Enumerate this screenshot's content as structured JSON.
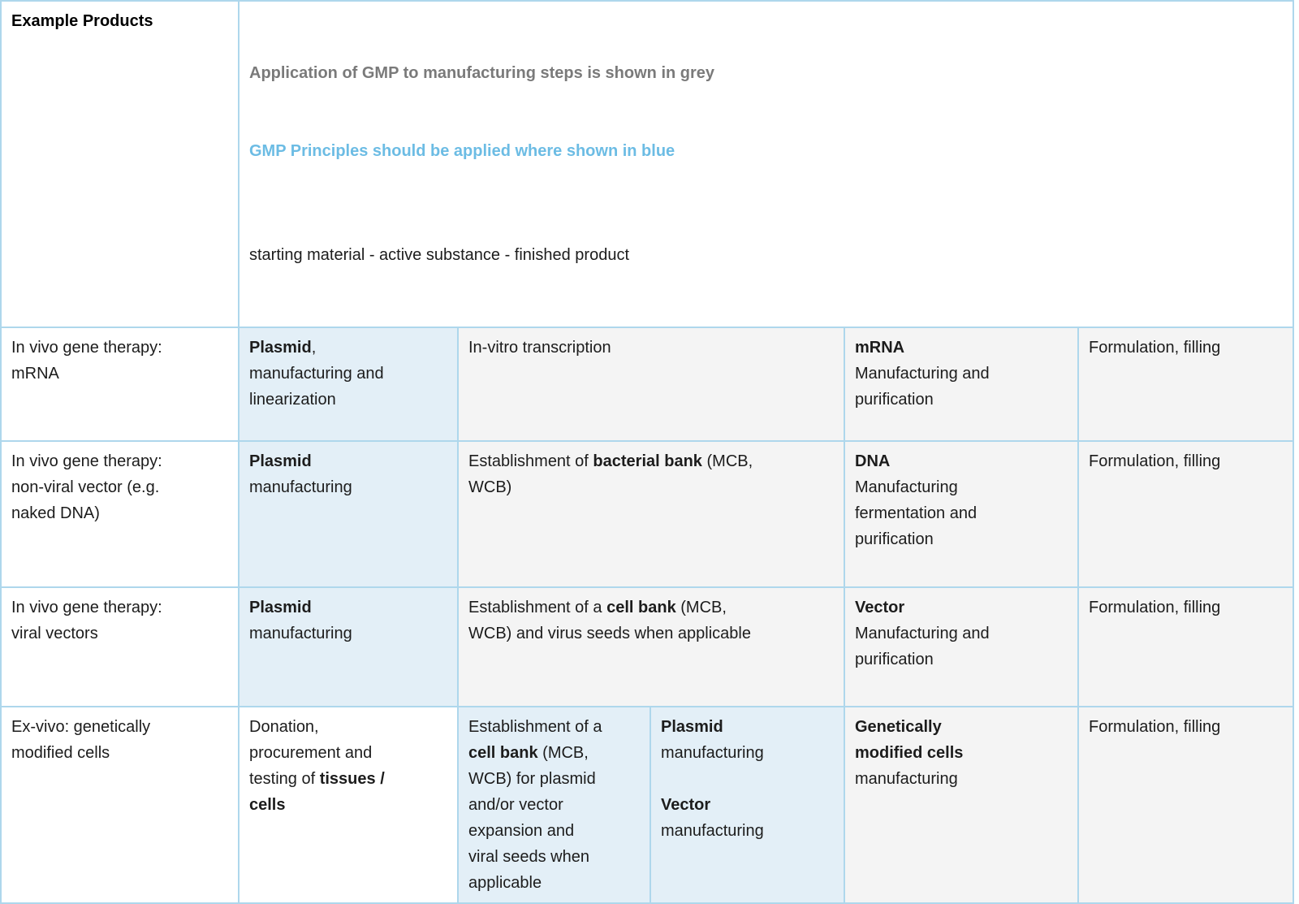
{
  "colors": {
    "border": "#aed7ec",
    "gmp_principles_blue_cell": "#e3eff7",
    "gmp_applied_grey_cell": "#f4f4f4",
    "legend_grey_text": "#7a7a7a",
    "legend_blue_text": "#6cbce4",
    "body_text": "#1c1c1c"
  },
  "header": {
    "example_products": "Example Products",
    "legend_grey": "Application of GMP to manufacturing steps is shown in grey",
    "legend_blue": "GMP Principles should be applied where shown in blue",
    "flow_line": "starting material - active substance - finished product"
  },
  "rows": [
    {
      "product": "In vivo gene therapy:\nmRNA",
      "cells": [
        {
          "name": "plasmid-manufacturing-linearization",
          "bg": "blue",
          "runs": [
            {
              "b": true,
              "t": "Plasmid"
            },
            {
              "t": ",\nmanufacturing and\nlinearization"
            }
          ]
        },
        {
          "name": "in-vitro-transcription",
          "bg": "grey",
          "runs": [
            {
              "t": "In-vitro transcription"
            }
          ]
        },
        {
          "name": "mrna-manufacturing-purification",
          "bg": "grey",
          "runs": [
            {
              "b": true,
              "t": "mRNA"
            },
            {
              "t": "\nManufacturing and\npurification"
            }
          ]
        },
        {
          "name": "formulation-filling",
          "bg": "grey",
          "runs": [
            {
              "t": "Formulation, filling"
            }
          ]
        }
      ]
    },
    {
      "product": "In vivo gene therapy:\nnon-viral vector (e.g.\nnaked DNA)",
      "cells": [
        {
          "name": "plasmid-manufacturing",
          "bg": "blue",
          "runs": [
            {
              "b": true,
              "t": "Plasmid"
            },
            {
              "t": "\nmanufacturing"
            }
          ]
        },
        {
          "name": "bacterial-bank-establishment",
          "bg": "grey",
          "runs": [
            {
              "t": "Establishment of "
            },
            {
              "b": true,
              "t": "bacterial bank"
            },
            {
              "t": " (MCB,\nWCB)"
            }
          ]
        },
        {
          "name": "dna-manufacturing-fermentation-purification",
          "bg": "grey",
          "runs": [
            {
              "b": true,
              "t": "DNA"
            },
            {
              "t": "\nManufacturing\nfermentation and\npurification"
            }
          ]
        },
        {
          "name": "formulation-filling",
          "bg": "grey",
          "runs": [
            {
              "t": "Formulation, filling"
            }
          ]
        }
      ]
    },
    {
      "product": "In vivo gene therapy:\nviral vectors",
      "cells": [
        {
          "name": "plasmid-manufacturing",
          "bg": "blue",
          "runs": [
            {
              "b": true,
              "t": "Plasmid"
            },
            {
              "t": "\nmanufacturing"
            }
          ]
        },
        {
          "name": "cell-bank-virus-seeds-establishment",
          "bg": "grey",
          "runs": [
            {
              "t": "Establishment of a "
            },
            {
              "b": true,
              "t": "cell bank"
            },
            {
              "t": " (MCB,\nWCB) and virus seeds when applicable"
            }
          ]
        },
        {
          "name": "vector-manufacturing-purification",
          "bg": "grey",
          "runs": [
            {
              "b": true,
              "t": "Vector"
            },
            {
              "t": "\nManufacturing and\npurification"
            }
          ]
        },
        {
          "name": "formulation-filling",
          "bg": "grey",
          "runs": [
            {
              "t": "Formulation, filling"
            }
          ]
        }
      ]
    },
    {
      "product": "Ex-vivo: genetically\nmodified cells",
      "cells": [
        {
          "name": "donation-procurement-testing",
          "bg": "white",
          "runs": [
            {
              "t": "Donation,\nprocurement and\ntesting of "
            },
            {
              "b": true,
              "t": "tissues /\ncells"
            }
          ]
        },
        {
          "name": "cell-bank-for-plasmid-vector-expansion",
          "bg": "blue",
          "runs": [
            {
              "t": "Establishment of a\n"
            },
            {
              "b": true,
              "t": "cell bank"
            },
            {
              "t": " (MCB,\nWCB) for plasmid\nand/or vector\nexpansion and\nviral seeds when\napplicable"
            }
          ]
        },
        {
          "name": "plasmid-and-vector-manufacturing",
          "bg": "blue",
          "runs": [
            {
              "b": true,
              "t": "Plasmid"
            },
            {
              "t": "\nmanufacturing\n\n"
            },
            {
              "b": true,
              "t": "Vector"
            },
            {
              "t": "\nmanufacturing"
            }
          ]
        },
        {
          "name": "genetically-modified-cells-manufacturing",
          "bg": "grey",
          "runs": [
            {
              "b": true,
              "t": "Genetically\nmodified cells"
            },
            {
              "t": "\nmanufacturing"
            }
          ]
        },
        {
          "name": "formulation-filling",
          "bg": "grey",
          "runs": [
            {
              "t": "Formulation, filling"
            }
          ]
        }
      ]
    }
  ]
}
